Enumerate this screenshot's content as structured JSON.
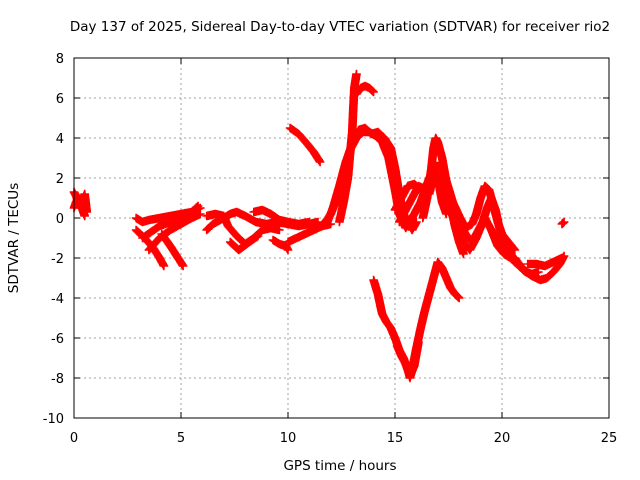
{
  "chart_data": {
    "type": "scatter",
    "title": "Day 137 of 2025, Sidereal Day-to-day VTEC variation (SDTVAR) for receiver rio2",
    "xlabel": "GPS time / hours",
    "ylabel": "SDTVAR / TECUs",
    "xlim": [
      0,
      25
    ],
    "ylim": [
      -10,
      8
    ],
    "xticks": [
      0,
      5,
      10,
      15,
      20,
      25
    ],
    "yticks": [
      -10,
      -8,
      -6,
      -4,
      -2,
      0,
      2,
      4,
      6,
      8
    ],
    "grid": true,
    "marker": "plus",
    "series": [
      {
        "name": "SDTVAR",
        "color": "#ff0000",
        "tracks": [
          [
            [
              0.0,
              1.3
            ],
            [
              0.1,
              1.1
            ],
            [
              0.2,
              0.7
            ],
            [
              0.3,
              0.5
            ],
            [
              0.4,
              0.9
            ],
            [
              0.5,
              1.2
            ],
            [
              0.6,
              0.3
            ]
          ],
          [
            [
              0.0,
              0.5
            ],
            [
              0.1,
              0.8
            ],
            [
              0.2,
              1.0
            ],
            [
              0.3,
              0.7
            ],
            [
              0.4,
              0.4
            ],
            [
              0.5,
              0.1
            ]
          ],
          [
            [
              2.9,
              0.0
            ],
            [
              3.2,
              -0.2
            ],
            [
              3.5,
              -0.1
            ],
            [
              4.0,
              0.0
            ],
            [
              4.5,
              0.1
            ],
            [
              5.0,
              0.2
            ],
            [
              5.5,
              0.3
            ],
            [
              5.9,
              0.5
            ]
          ],
          [
            [
              2.9,
              -0.6
            ],
            [
              3.3,
              -1.0
            ],
            [
              3.7,
              -1.5
            ],
            [
              4.0,
              -2.0
            ],
            [
              4.2,
              -2.4
            ]
          ],
          [
            [
              3.2,
              -1.0
            ],
            [
              3.6,
              -0.7
            ],
            [
              4.0,
              -0.4
            ],
            [
              4.5,
              -0.2
            ],
            [
              5.0,
              0.0
            ],
            [
              5.5,
              0.3
            ],
            [
              5.8,
              0.6
            ]
          ],
          [
            [
              3.5,
              -1.6
            ],
            [
              4.0,
              -1.0
            ],
            [
              4.5,
              -0.6
            ],
            [
              5.0,
              -0.3
            ],
            [
              5.5,
              0.0
            ],
            [
              5.9,
              0.2
            ]
          ],
          [
            [
              4.1,
              -0.8
            ],
            [
              4.5,
              -1.4
            ],
            [
              4.8,
              -1.9
            ],
            [
              5.1,
              -2.4
            ]
          ],
          [
            [
              6.2,
              -0.6
            ],
            [
              6.5,
              -0.3
            ],
            [
              7.0,
              0.0
            ],
            [
              7.3,
              0.2
            ],
            [
              7.6,
              0.3
            ],
            [
              8.0,
              0.1
            ],
            [
              8.5,
              -0.2
            ],
            [
              9.0,
              -0.3
            ],
            [
              9.5,
              -0.2
            ],
            [
              10.0,
              -0.3
            ],
            [
              10.5,
              -0.4
            ],
            [
              11.0,
              -0.3
            ],
            [
              11.4,
              -0.2
            ]
          ],
          [
            [
              6.2,
              0.1
            ],
            [
              6.6,
              0.2
            ],
            [
              7.0,
              0.1
            ],
            [
              7.2,
              -0.4
            ],
            [
              7.6,
              -0.9
            ],
            [
              8.0,
              -1.3
            ],
            [
              8.4,
              -1.0
            ],
            [
              8.8,
              -0.6
            ],
            [
              9.2,
              -0.5
            ],
            [
              9.6,
              -0.6
            ]
          ],
          [
            [
              7.3,
              -1.2
            ],
            [
              7.7,
              -1.6
            ],
            [
              8.2,
              -1.2
            ],
            [
              8.6,
              -0.9
            ]
          ],
          [
            [
              8.4,
              0.3
            ],
            [
              8.8,
              0.4
            ],
            [
              9.2,
              0.2
            ],
            [
              9.6,
              -0.1
            ],
            [
              10.0,
              -0.2
            ],
            [
              10.5,
              -0.3
            ],
            [
              11.0,
              -0.2
            ]
          ],
          [
            [
              9.3,
              -1.1
            ],
            [
              9.6,
              -1.3
            ],
            [
              9.9,
              -1.4
            ],
            [
              10.0,
              -1.6
            ]
          ],
          [
            [
              10.0,
              -1.2
            ],
            [
              10.4,
              -1.0
            ],
            [
              10.8,
              -0.8
            ],
            [
              11.2,
              -0.6
            ],
            [
              11.6,
              -0.4
            ],
            [
              12.0,
              -0.3
            ]
          ],
          [
            [
              10.1,
              4.5
            ],
            [
              10.5,
              4.2
            ],
            [
              10.9,
              3.7
            ],
            [
              11.2,
              3.3
            ],
            [
              11.5,
              2.8
            ]
          ],
          [
            [
              11.6,
              -0.4
            ],
            [
              12.0,
              0.2
            ],
            [
              12.3,
              1.0
            ],
            [
              12.6,
              2.3
            ],
            [
              12.9,
              3.4
            ],
            [
              13.2,
              4.0
            ],
            [
              13.5,
              4.3
            ],
            [
              13.8,
              4.3
            ],
            [
              14.1,
              4.1
            ],
            [
              14.4,
              3.8
            ],
            [
              14.7,
              3.0
            ],
            [
              15.0,
              1.4
            ],
            [
              15.2,
              0.2
            ],
            [
              15.5,
              -0.5
            ],
            [
              15.8,
              0.0
            ],
            [
              16.0,
              0.4
            ],
            [
              16.2,
              0.8
            ],
            [
              16.4,
              1.4
            ],
            [
              16.6,
              2.0
            ],
            [
              16.8,
              2.4
            ],
            [
              17.0,
              2.0
            ],
            [
              17.2,
              0.8
            ],
            [
              17.4,
              0.2
            ]
          ],
          [
            [
              11.8,
              -0.3
            ],
            [
              12.1,
              0.5
            ],
            [
              12.4,
              1.6
            ],
            [
              12.7,
              2.8
            ],
            [
              13.0,
              3.7
            ],
            [
              13.3,
              4.4
            ],
            [
              13.6,
              4.5
            ],
            [
              13.9,
              4.2
            ],
            [
              14.2,
              4.3
            ],
            [
              14.5,
              4.0
            ],
            [
              14.8,
              3.5
            ],
            [
              15.0,
              2.5
            ],
            [
              15.2,
              1.2
            ],
            [
              15.4,
              0.2
            ],
            [
              15.6,
              -0.2
            ],
            [
              15.8,
              -0.6
            ],
            [
              16.0,
              -0.2
            ]
          ],
          [
            [
              12.4,
              -0.2
            ],
            [
              12.6,
              0.8
            ],
            [
              12.8,
              2.0
            ],
            [
              12.9,
              3.2
            ],
            [
              13.0,
              4.3
            ],
            [
              13.05,
              5.5
            ],
            [
              13.1,
              6.5
            ],
            [
              13.2,
              7.2
            ]
          ],
          [
            [
              13.2,
              6.2
            ],
            [
              13.4,
              6.5
            ],
            [
              13.6,
              6.6
            ],
            [
              13.8,
              6.5
            ],
            [
              14.0,
              6.3
            ]
          ],
          [
            [
              15.2,
              -0.2
            ],
            [
              15.5,
              0.4
            ],
            [
              15.8,
              1.0
            ],
            [
              16.1,
              1.6
            ],
            [
              16.3,
              1.5
            ],
            [
              16.5,
              1.0
            ]
          ],
          [
            [
              15.0,
              0.4
            ],
            [
              15.3,
              1.0
            ],
            [
              15.6,
              1.6
            ],
            [
              15.9,
              1.7
            ],
            [
              16.2,
              1.4
            ]
          ],
          [
            [
              16.3,
              0.0
            ],
            [
              16.5,
              1.0
            ],
            [
              16.7,
              2.5
            ],
            [
              16.8,
              3.5
            ],
            [
              16.9,
              4.0
            ],
            [
              17.0,
              3.8
            ],
            [
              17.2,
              3.0
            ],
            [
              17.4,
              1.8
            ],
            [
              17.6,
              0.6
            ],
            [
              17.8,
              -0.4
            ],
            [
              18.0,
              -1.2
            ],
            [
              18.2,
              -1.8
            ]
          ],
          [
            [
              16.6,
              1.2
            ],
            [
              16.9,
              2.6
            ],
            [
              17.1,
              2.6
            ],
            [
              17.3,
              2.2
            ],
            [
              17.5,
              1.5
            ],
            [
              17.7,
              0.8
            ],
            [
              18.0,
              0.1
            ],
            [
              18.3,
              -0.5
            ],
            [
              18.6,
              -0.3
            ],
            [
              18.8,
              0.2
            ],
            [
              19.0,
              1.0
            ],
            [
              19.2,
              1.6
            ],
            [
              19.4,
              1.4
            ],
            [
              19.6,
              0.6
            ],
            [
              19.8,
              -0.2
            ],
            [
              20.0,
              -0.8
            ],
            [
              20.3,
              -1.2
            ],
            [
              20.6,
              -1.6
            ]
          ],
          [
            [
              17.6,
              0.3
            ],
            [
              17.9,
              -0.4
            ],
            [
              18.2,
              -1.2
            ],
            [
              18.5,
              -1.6
            ],
            [
              18.8,
              -1.0
            ],
            [
              19.1,
              -0.2
            ],
            [
              19.3,
              0.5
            ],
            [
              19.5,
              1.0
            ],
            [
              19.7,
              0.4
            ],
            [
              19.9,
              -0.6
            ],
            [
              20.2,
              -1.4
            ],
            [
              20.5,
              -2.0
            ],
            [
              20.8,
              -2.4
            ],
            [
              21.1,
              -2.7
            ],
            [
              21.4,
              -2.8
            ],
            [
              21.7,
              -2.7
            ]
          ],
          [
            [
              18.0,
              -0.3
            ],
            [
              18.3,
              -0.8
            ],
            [
              18.6,
              -1.2
            ],
            [
              18.9,
              -0.6
            ],
            [
              19.2,
              0.0
            ],
            [
              19.5,
              -0.6
            ],
            [
              19.8,
              -1.4
            ],
            [
              20.1,
              -1.8
            ],
            [
              20.4,
              -2.0
            ],
            [
              20.7,
              -2.3
            ],
            [
              21.0,
              -2.5
            ]
          ],
          [
            [
              20.6,
              -2.0
            ],
            [
              21.0,
              -2.6
            ],
            [
              21.4,
              -2.9
            ],
            [
              21.8,
              -3.1
            ],
            [
              22.1,
              -3.0
            ],
            [
              22.4,
              -2.7
            ],
            [
              22.7,
              -2.3
            ],
            [
              22.9,
              -1.9
            ]
          ],
          [
            [
              21.2,
              -2.3
            ],
            [
              21.6,
              -2.3
            ],
            [
              22.0,
              -2.4
            ],
            [
              22.4,
              -2.2
            ],
            [
              22.8,
              -2.0
            ]
          ],
          [
            [
              22.8,
              -0.3
            ],
            [
              22.9,
              -0.2
            ]
          ],
          [
            [
              14.0,
              -3.1
            ],
            [
              14.2,
              -3.8
            ],
            [
              14.4,
              -4.8
            ],
            [
              14.6,
              -5.2
            ],
            [
              14.8,
              -5.5
            ],
            [
              15.0,
              -6.0
            ],
            [
              15.2,
              -6.6
            ],
            [
              15.4,
              -7.0
            ],
            [
              15.6,
              -7.6
            ],
            [
              15.7,
              -8.0
            ],
            [
              15.8,
              -7.6
            ],
            [
              16.0,
              -6.5
            ],
            [
              16.2,
              -5.5
            ],
            [
              16.4,
              -4.6
            ],
            [
              16.6,
              -3.8
            ],
            [
              16.8,
              -3.0
            ],
            [
              17.0,
              -2.2
            ],
            [
              17.2,
              -2.5
            ],
            [
              17.4,
              -3.0
            ],
            [
              17.6,
              -3.5
            ],
            [
              17.8,
              -3.8
            ],
            [
              18.0,
              -4.0
            ]
          ],
          [
            [
              15.1,
              -6.4
            ],
            [
              15.3,
              -6.9
            ],
            [
              15.5,
              -7.3
            ],
            [
              15.7,
              -7.9
            ],
            [
              15.9,
              -7.4
            ],
            [
              16.1,
              -6.2
            ]
          ]
        ]
      }
    ]
  }
}
